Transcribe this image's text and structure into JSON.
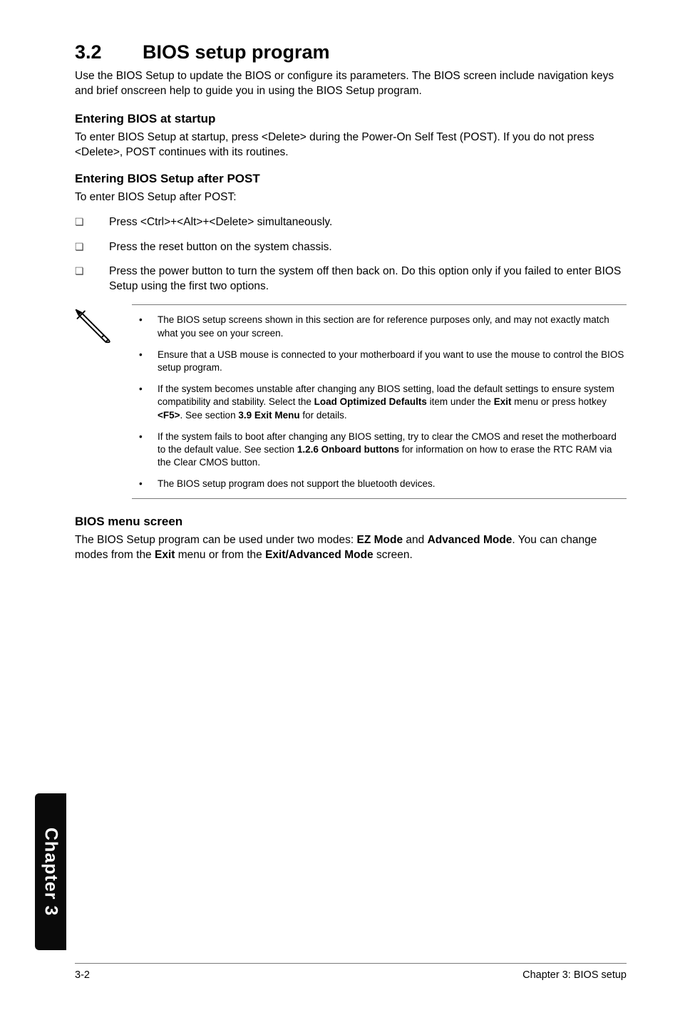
{
  "heading": {
    "number": "3.2",
    "title": "BIOS setup program"
  },
  "intro": "Use the BIOS Setup to update the BIOS or configure its parameters. The BIOS screen include navigation keys and brief onscreen help to guide you in using the BIOS Setup program.",
  "sec1": {
    "title": "Entering BIOS at startup",
    "body": "To enter BIOS Setup at startup, press <Delete> during the Power-On Self Test (POST). If you do not press <Delete>, POST continues with its routines."
  },
  "sec2": {
    "title": "Entering BIOS Setup after POST",
    "lead": "To enter BIOS Setup after POST:",
    "items": [
      "Press <Ctrl>+<Alt>+<Delete> simultaneously.",
      "Press the reset button on the system chassis.",
      "Press the power button to turn the system off then back on. Do this option only if you failed to enter BIOS Setup using the first two options."
    ]
  },
  "notes": [
    "The BIOS setup screens shown in this section are for reference purposes only, and may not exactly match what you see on your screen.",
    "Ensure that a USB mouse is connected to your motherboard if you want to use the mouse to control the BIOS setup program.",
    "__HTML__If the system becomes unstable after changing any BIOS setting, load the default settings to ensure system compatibility and stability. Select the <b>Load Optimized Defaults</b> item under the <b>Exit</b> menu or press hotkey <b>&lt;F5&gt;</b>. See section <b>3.9 Exit Menu</b> for details.",
    "__HTML__If the system fails to boot after changing any BIOS setting, try to clear the CMOS and reset the motherboard to the default value. See section <b>1.2.6 Onboard buttons</b> for information on how to erase the RTC RAM via the Clear CMOS button.",
    "The BIOS setup program does not support the bluetooth devices."
  ],
  "sec3": {
    "title": "BIOS menu screen",
    "body": "__HTML__The BIOS Setup program can be used under two modes: <b>EZ Mode</b> and <b>Advanced Mode</b>. You can change modes from the <b>Exit</b> menu or from the <b>Exit/Advanced Mode</b> screen."
  },
  "sidetab": "Chapter 3",
  "footer": {
    "left": "3-2",
    "right": "Chapter 3: BIOS setup"
  },
  "style": {
    "page_bg": "#ffffff",
    "text_color": "#000000",
    "rule_color": "#7a7a7a",
    "tab_bg": "#0a0a0a",
    "tab_text": "#ffffff",
    "body_fontsize": 15.5,
    "note_fontsize": 13.5,
    "h1_fontsize": 27,
    "h2_fontsize": 17,
    "bullet_glyph": "❏",
    "note_bullet": "•"
  }
}
